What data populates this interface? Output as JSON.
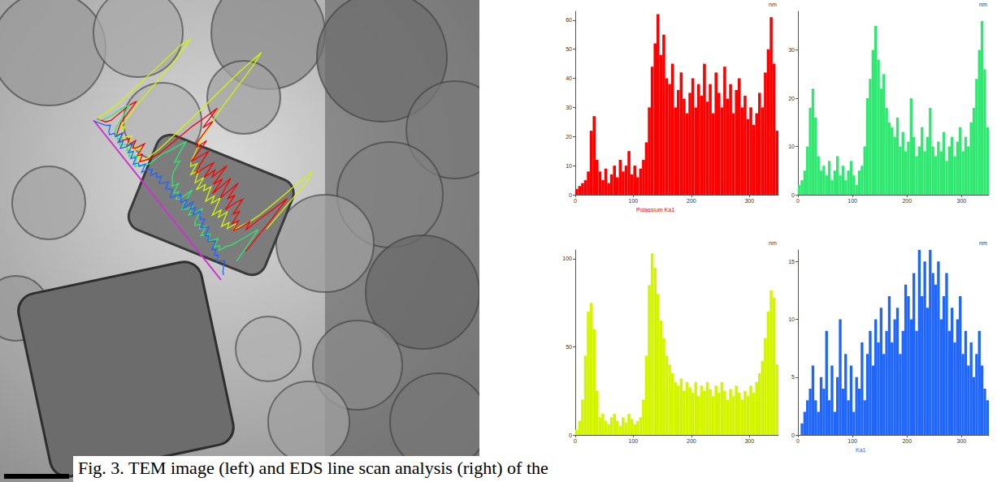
{
  "caption": "Fig. 3. TEM image (left) and EDS line scan analysis (right) of the",
  "chart_data": [
    {
      "type": "histogram",
      "title": "Potassium Ka1",
      "xlabel": "nm",
      "color": "#ff0000",
      "bins": [
        0,
        5,
        10,
        15,
        20,
        25,
        30,
        35,
        40,
        45,
        50,
        55,
        60,
        65,
        70,
        75,
        80,
        85,
        90,
        95,
        100,
        105,
        110,
        115,
        120,
        125,
        130,
        135,
        140,
        145,
        150,
        155,
        160,
        165,
        170,
        175,
        180,
        185,
        190,
        195,
        200,
        205,
        210,
        215,
        220,
        225,
        230,
        235,
        240,
        245,
        250,
        255,
        260,
        265,
        270,
        275,
        280,
        285,
        290,
        295,
        300,
        305,
        310,
        315,
        320,
        325,
        330,
        335,
        340,
        345,
        350
      ],
      "values": [
        2,
        3,
        4,
        5,
        8,
        22,
        27,
        12,
        8,
        5,
        9,
        4,
        7,
        10,
        6,
        12,
        8,
        10,
        15,
        7,
        10,
        6,
        9,
        12,
        18,
        30,
        44,
        52,
        62,
        48,
        55,
        40,
        38,
        45,
        30,
        36,
        42,
        33,
        28,
        35,
        40,
        30,
        38,
        34,
        45,
        32,
        38,
        28,
        42,
        35,
        30,
        44,
        33,
        38,
        28,
        36,
        40,
        30,
        34,
        26,
        30,
        24,
        28,
        35,
        30,
        42,
        50,
        61,
        45,
        22
      ],
      "xlim": [
        0,
        350
      ],
      "xticks": [
        0,
        100,
        200,
        300
      ],
      "ylim": [
        0,
        63
      ],
      "yticks": [
        0,
        10,
        20,
        30,
        40,
        50,
        60
      ],
      "grid": false
    },
    {
      "type": "histogram",
      "xlabel": "nm",
      "color": "#2ee86f",
      "bins": [
        0,
        5,
        10,
        15,
        20,
        25,
        30,
        35,
        40,
        45,
        50,
        55,
        60,
        65,
        70,
        75,
        80,
        85,
        90,
        95,
        100,
        105,
        110,
        115,
        120,
        125,
        130,
        135,
        140,
        145,
        150,
        155,
        160,
        165,
        170,
        175,
        180,
        185,
        190,
        195,
        200,
        205,
        210,
        215,
        220,
        225,
        230,
        235,
        240,
        245,
        250,
        255,
        260,
        265,
        270,
        275,
        280,
        285,
        290,
        295,
        300,
        305,
        310,
        315,
        320,
        325,
        330,
        335,
        340,
        345,
        350
      ],
      "values": [
        2,
        3,
        5,
        10,
        18,
        22,
        16,
        8,
        5,
        6,
        4,
        7,
        3,
        5,
        8,
        4,
        6,
        3,
        5,
        7,
        4,
        2,
        5,
        6,
        10,
        20,
        24,
        30,
        35,
        28,
        22,
        25,
        18,
        15,
        14,
        12,
        16,
        10,
        13,
        9,
        11,
        20,
        12,
        8,
        10,
        14,
        9,
        12,
        18,
        10,
        8,
        11,
        9,
        13,
        7,
        10,
        12,
        8,
        11,
        14,
        9,
        12,
        10,
        15,
        18,
        24,
        30,
        36,
        26,
        14
      ],
      "xlim": [
        0,
        350
      ],
      "xticks": [
        0,
        100,
        200,
        300
      ],
      "ylim": [
        0,
        38
      ],
      "yticks": [
        0,
        10,
        20,
        30
      ],
      "grid": false
    },
    {
      "type": "histogram",
      "xlabel": "nm",
      "color": "#d4f500",
      "bins": [
        0,
        5,
        10,
        15,
        20,
        25,
        30,
        35,
        40,
        45,
        50,
        55,
        60,
        65,
        70,
        75,
        80,
        85,
        90,
        95,
        100,
        105,
        110,
        115,
        120,
        125,
        130,
        135,
        140,
        145,
        150,
        155,
        160,
        165,
        170,
        175,
        180,
        185,
        190,
        195,
        200,
        205,
        210,
        215,
        220,
        225,
        230,
        235,
        240,
        245,
        250,
        255,
        260,
        265,
        270,
        275,
        280,
        285,
        290,
        295,
        300,
        305,
        310,
        315,
        320,
        325,
        330,
        335,
        340,
        345,
        350
      ],
      "values": [
        3,
        8,
        20,
        45,
        70,
        75,
        60,
        25,
        10,
        12,
        8,
        6,
        10,
        12,
        8,
        5,
        10,
        7,
        12,
        9,
        6,
        8,
        10,
        20,
        45,
        85,
        103,
        95,
        80,
        65,
        55,
        45,
        40,
        35,
        30,
        28,
        32,
        25,
        30,
        27,
        24,
        30,
        22,
        28,
        25,
        30,
        26,
        22,
        28,
        24,
        30,
        25,
        20,
        26,
        22,
        28,
        24,
        20,
        25,
        22,
        28,
        24,
        30,
        35,
        42,
        55,
        70,
        82,
        78,
        40
      ],
      "xlim": [
        0,
        350
      ],
      "xticks": [
        0,
        100,
        200,
        300
      ],
      "ylim": [
        0,
        105
      ],
      "yticks": [
        0,
        50,
        100
      ],
      "grid": false
    },
    {
      "type": "histogram",
      "title": "Ka1",
      "xlabel": "nm",
      "color": "#1e66ff",
      "bins": [
        0,
        5,
        10,
        15,
        20,
        25,
        30,
        35,
        40,
        45,
        50,
        55,
        60,
        65,
        70,
        75,
        80,
        85,
        90,
        95,
        100,
        105,
        110,
        115,
        120,
        125,
        130,
        135,
        140,
        145,
        150,
        155,
        160,
        165,
        170,
        175,
        180,
        185,
        190,
        195,
        200,
        205,
        210,
        215,
        220,
        225,
        230,
        235,
        240,
        245,
        250,
        255,
        260,
        265,
        270,
        275,
        280,
        285,
        290,
        295,
        300,
        305,
        310,
        315,
        320,
        325,
        330,
        335,
        340,
        345,
        350
      ],
      "values": [
        0,
        1,
        2,
        3,
        4,
        6,
        3,
        2,
        5,
        4,
        9,
        3,
        6,
        2,
        5,
        10,
        4,
        7,
        3,
        6,
        2,
        5,
        4,
        8,
        3,
        7,
        9,
        6,
        10,
        8,
        11,
        7,
        9,
        12,
        8,
        10,
        11,
        7,
        9,
        13,
        12,
        10,
        14,
        9,
        16,
        12,
        15,
        11,
        16,
        14,
        13,
        15,
        10,
        12,
        14,
        9,
        11,
        8,
        10,
        12,
        7,
        9,
        6,
        8,
        5,
        7,
        9,
        6,
        4,
        3
      ],
      "xlim": [
        0,
        350
      ],
      "xticks": [
        0,
        100,
        200,
        300
      ],
      "ylim": [
        0,
        16
      ],
      "yticks": [
        0,
        5,
        10,
        15
      ],
      "grid": false
    }
  ]
}
